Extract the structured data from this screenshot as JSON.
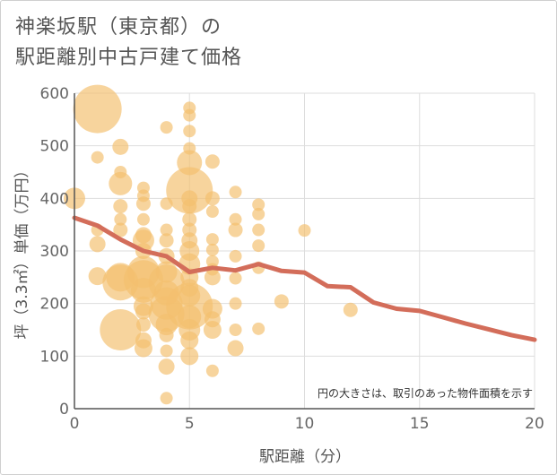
{
  "chart_data": {
    "type": "scatter",
    "title_line1": "神楽坂駅（東京都）の",
    "title_line2": "駅距離別中古戸建て価格",
    "xlabel": "駅距離（分）",
    "ylabel": "坪（3.3㎡）単価（万円）",
    "xlim": [
      0,
      20
    ],
    "ylim": [
      0,
      600
    ],
    "x_ticks": [
      "0",
      "5",
      "10",
      "15",
      "20"
    ],
    "y_ticks": [
      "0",
      "100",
      "200",
      "300",
      "400",
      "500",
      "600"
    ],
    "note": "円の大きさは、取引のあった物件面積を示す",
    "colors": {
      "bubble": "#f3c06e",
      "line": "#d36d5a",
      "grid": "#dddddd",
      "axis": "#555555"
    },
    "bubbles": [
      {
        "x": 0,
        "y": 400,
        "r": 12
      },
      {
        "x": 1,
        "y": 570,
        "r": 27
      },
      {
        "x": 1,
        "y": 478,
        "r": 7
      },
      {
        "x": 1,
        "y": 340,
        "r": 7
      },
      {
        "x": 1,
        "y": 313,
        "r": 9
      },
      {
        "x": 1,
        "y": 252,
        "r": 10
      },
      {
        "x": 2,
        "y": 498,
        "r": 9
      },
      {
        "x": 2,
        "y": 450,
        "r": 7
      },
      {
        "x": 2,
        "y": 428,
        "r": 13
      },
      {
        "x": 2,
        "y": 385,
        "r": 8
      },
      {
        "x": 2,
        "y": 360,
        "r": 7
      },
      {
        "x": 2,
        "y": 340,
        "r": 8
      },
      {
        "x": 2,
        "y": 250,
        "r": 16
      },
      {
        "x": 2,
        "y": 240,
        "r": 20
      },
      {
        "x": 2,
        "y": 150,
        "r": 23
      },
      {
        "x": 3,
        "y": 420,
        "r": 7
      },
      {
        "x": 3,
        "y": 405,
        "r": 7
      },
      {
        "x": 3,
        "y": 390,
        "r": 8
      },
      {
        "x": 3,
        "y": 360,
        "r": 7
      },
      {
        "x": 3,
        "y": 330,
        "r": 9
      },
      {
        "x": 3,
        "y": 320,
        "r": 12
      },
      {
        "x": 3,
        "y": 300,
        "r": 9
      },
      {
        "x": 3,
        "y": 260,
        "r": 18
      },
      {
        "x": 3,
        "y": 245,
        "r": 22
      },
      {
        "x": 3,
        "y": 225,
        "r": 14
      },
      {
        "x": 3,
        "y": 195,
        "r": 11
      },
      {
        "x": 3,
        "y": 185,
        "r": 9
      },
      {
        "x": 3,
        "y": 160,
        "r": 8
      },
      {
        "x": 3,
        "y": 130,
        "r": 9
      },
      {
        "x": 3,
        "y": 115,
        "r": 10
      },
      {
        "x": 4,
        "y": 535,
        "r": 7
      },
      {
        "x": 4,
        "y": 390,
        "r": 7
      },
      {
        "x": 4,
        "y": 340,
        "r": 7
      },
      {
        "x": 4,
        "y": 320,
        "r": 8
      },
      {
        "x": 4,
        "y": 290,
        "r": 9
      },
      {
        "x": 4,
        "y": 260,
        "r": 12
      },
      {
        "x": 4,
        "y": 240,
        "r": 20
      },
      {
        "x": 4,
        "y": 220,
        "r": 14
      },
      {
        "x": 4,
        "y": 200,
        "r": 18
      },
      {
        "x": 4,
        "y": 180,
        "r": 20
      },
      {
        "x": 4,
        "y": 160,
        "r": 12
      },
      {
        "x": 4,
        "y": 140,
        "r": 8
      },
      {
        "x": 4,
        "y": 110,
        "r": 7
      },
      {
        "x": 4,
        "y": 80,
        "r": 9
      },
      {
        "x": 4,
        "y": 20,
        "r": 7
      },
      {
        "x": 5,
        "y": 572,
        "r": 7
      },
      {
        "x": 5,
        "y": 558,
        "r": 7
      },
      {
        "x": 5,
        "y": 528,
        "r": 7
      },
      {
        "x": 5,
        "y": 495,
        "r": 7
      },
      {
        "x": 5,
        "y": 468,
        "r": 14
      },
      {
        "x": 5,
        "y": 415,
        "r": 26
      },
      {
        "x": 5,
        "y": 400,
        "r": 9
      },
      {
        "x": 5,
        "y": 385,
        "r": 8
      },
      {
        "x": 5,
        "y": 360,
        "r": 8
      },
      {
        "x": 5,
        "y": 340,
        "r": 8
      },
      {
        "x": 5,
        "y": 320,
        "r": 9
      },
      {
        "x": 5,
        "y": 300,
        "r": 11
      },
      {
        "x": 5,
        "y": 275,
        "r": 12
      },
      {
        "x": 5,
        "y": 250,
        "r": 10
      },
      {
        "x": 5,
        "y": 230,
        "r": 10
      },
      {
        "x": 5,
        "y": 215,
        "r": 12
      },
      {
        "x": 5,
        "y": 195,
        "r": 26
      },
      {
        "x": 5,
        "y": 175,
        "r": 13
      },
      {
        "x": 5,
        "y": 150,
        "r": 12
      },
      {
        "x": 5,
        "y": 130,
        "r": 10
      },
      {
        "x": 5,
        "y": 100,
        "r": 10
      },
      {
        "x": 6,
        "y": 470,
        "r": 8
      },
      {
        "x": 6,
        "y": 400,
        "r": 8
      },
      {
        "x": 6,
        "y": 375,
        "r": 7
      },
      {
        "x": 6,
        "y": 322,
        "r": 7
      },
      {
        "x": 6,
        "y": 302,
        "r": 7
      },
      {
        "x": 6,
        "y": 280,
        "r": 7
      },
      {
        "x": 6,
        "y": 265,
        "r": 7
      },
      {
        "x": 6,
        "y": 250,
        "r": 9
      },
      {
        "x": 6,
        "y": 190,
        "r": 11
      },
      {
        "x": 6,
        "y": 170,
        "r": 9
      },
      {
        "x": 6,
        "y": 150,
        "r": 10
      },
      {
        "x": 6,
        "y": 72,
        "r": 7
      },
      {
        "x": 7,
        "y": 412,
        "r": 7
      },
      {
        "x": 7,
        "y": 360,
        "r": 7
      },
      {
        "x": 7,
        "y": 340,
        "r": 8
      },
      {
        "x": 7,
        "y": 290,
        "r": 7
      },
      {
        "x": 7,
        "y": 248,
        "r": 7
      },
      {
        "x": 7,
        "y": 200,
        "r": 7
      },
      {
        "x": 7,
        "y": 150,
        "r": 7
      },
      {
        "x": 7,
        "y": 115,
        "r": 9
      },
      {
        "x": 8,
        "y": 388,
        "r": 7
      },
      {
        "x": 8,
        "y": 370,
        "r": 7
      },
      {
        "x": 8,
        "y": 340,
        "r": 7
      },
      {
        "x": 8,
        "y": 310,
        "r": 7
      },
      {
        "x": 8,
        "y": 268,
        "r": 7
      },
      {
        "x": 8,
        "y": 152,
        "r": 7
      },
      {
        "x": 9,
        "y": 204,
        "r": 8
      },
      {
        "x": 10,
        "y": 339,
        "r": 7
      },
      {
        "x": 12,
        "y": 188,
        "r": 8
      }
    ],
    "trend_line": {
      "x": [
        0,
        1,
        2,
        3,
        4,
        5,
        6,
        7,
        8,
        9,
        10,
        11,
        12,
        13,
        14,
        15,
        16,
        17,
        18,
        19,
        20
      ],
      "y": [
        363,
        348,
        322,
        300,
        290,
        260,
        268,
        263,
        275,
        262,
        259,
        233,
        231,
        202,
        190,
        186,
        174,
        162,
        151,
        140,
        131
      ]
    }
  }
}
